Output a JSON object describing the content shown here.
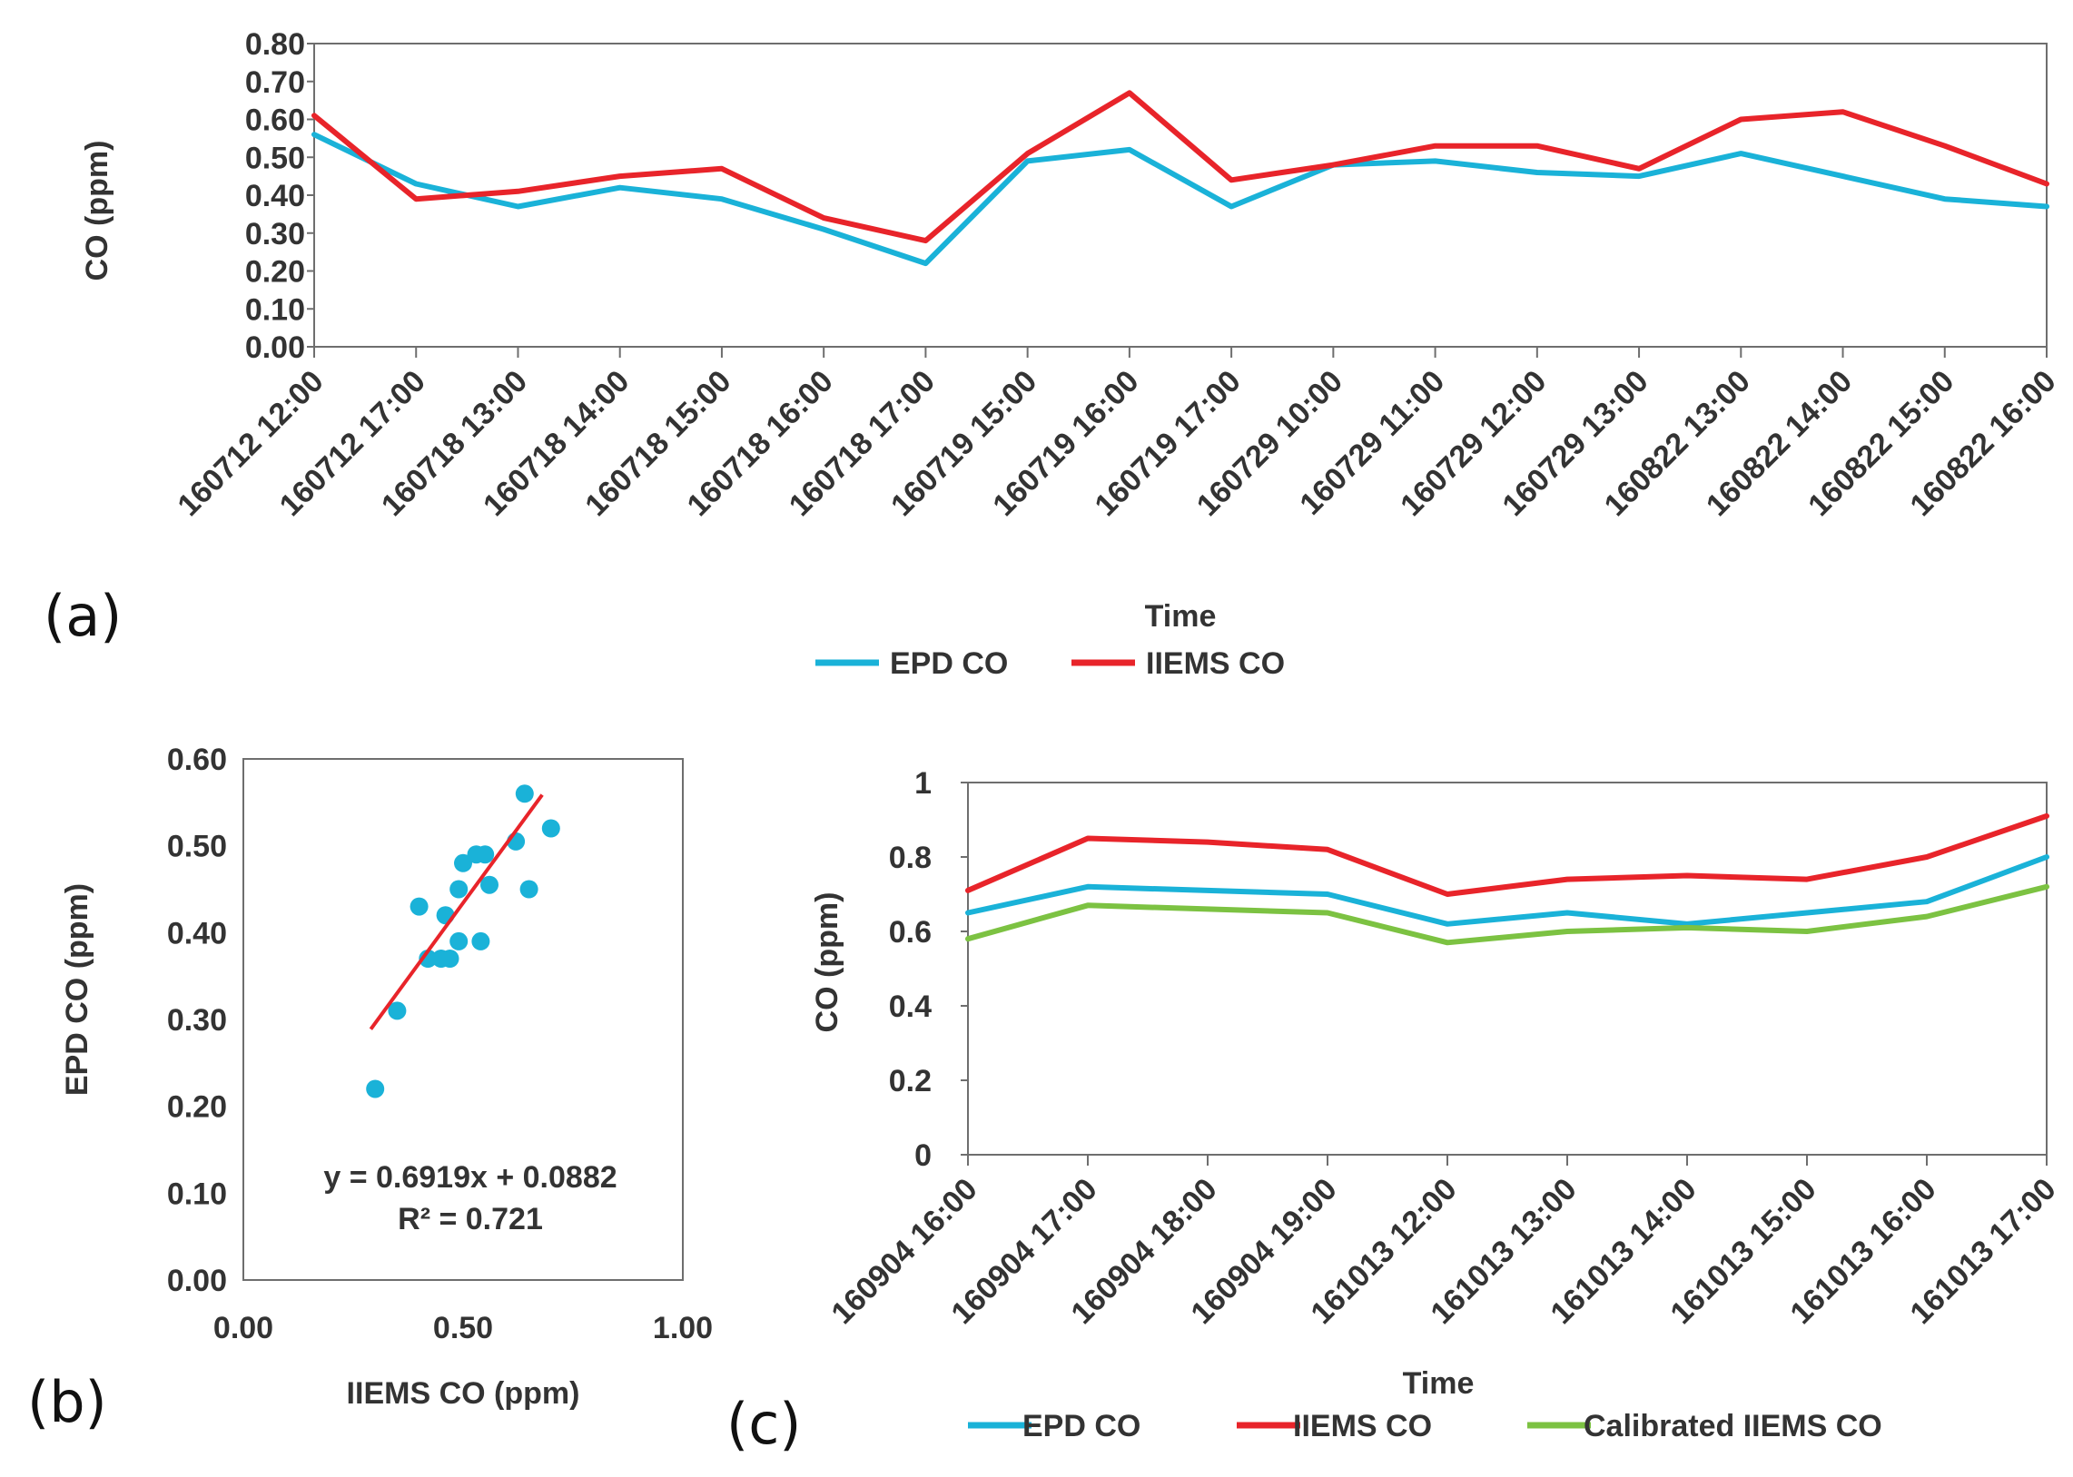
{
  "chart_data": [
    {
      "id": "a",
      "type": "line",
      "panel_label": "(a)",
      "xlabel": "Time",
      "ylabel": "CO (ppm)",
      "ylim": [
        0,
        0.8
      ],
      "yticks": [
        "0.00",
        "0.10",
        "0.20",
        "0.30",
        "0.40",
        "0.50",
        "0.60",
        "0.70",
        "0.80"
      ],
      "categories": [
        "160712 12:00",
        "160712 17:00",
        "160718 13:00",
        "160718 14:00",
        "160718 15:00",
        "160718 16:00",
        "160718 17:00",
        "160719 15:00",
        "160719 16:00",
        "160719 17:00",
        "160729 10:00",
        "160729 11:00",
        "160729 12:00",
        "160729 13:00",
        "160822 13:00",
        "160822 14:00",
        "160822 15:00",
        "160822 16:00"
      ],
      "series": [
        {
          "name": "EPD CO",
          "color": "#1ab2d8",
          "values": [
            0.56,
            0.43,
            0.37,
            0.42,
            0.39,
            0.31,
            0.22,
            0.49,
            0.52,
            0.37,
            0.48,
            0.49,
            0.46,
            0.45,
            0.51,
            0.45,
            0.39,
            0.37
          ]
        },
        {
          "name": "IIEMS CO",
          "color": "#e8242a",
          "values": [
            0.61,
            0.39,
            0.41,
            0.45,
            0.47,
            0.34,
            0.28,
            0.51,
            0.67,
            0.44,
            0.48,
            0.53,
            0.53,
            0.47,
            0.6,
            0.62,
            0.53,
            0.43
          ]
        }
      ],
      "grid": false,
      "legend_position": "bottom"
    },
    {
      "id": "b",
      "type": "scatter",
      "panel_label": "(b)",
      "xlabel": "IIEMS CO (ppm)",
      "ylabel": "EPD CO (ppm)",
      "xlim": [
        0,
        1
      ],
      "ylim": [
        0,
        0.6
      ],
      "xticks": [
        "0.00",
        "0.50",
        "1.00"
      ],
      "yticks": [
        "0.00",
        "0.10",
        "0.20",
        "0.30",
        "0.40",
        "0.50",
        "0.60"
      ],
      "points": [
        {
          "x": 0.3,
          "y": 0.22
        },
        {
          "x": 0.35,
          "y": 0.31
        },
        {
          "x": 0.4,
          "y": 0.43
        },
        {
          "x": 0.42,
          "y": 0.37
        },
        {
          "x": 0.45,
          "y": 0.37
        },
        {
          "x": 0.47,
          "y": 0.37
        },
        {
          "x": 0.46,
          "y": 0.42
        },
        {
          "x": 0.49,
          "y": 0.39
        },
        {
          "x": 0.49,
          "y": 0.45
        },
        {
          "x": 0.5,
          "y": 0.48
        },
        {
          "x": 0.53,
          "y": 0.49
        },
        {
          "x": 0.55,
          "y": 0.49
        },
        {
          "x": 0.54,
          "y": 0.39
        },
        {
          "x": 0.56,
          "y": 0.455
        },
        {
          "x": 0.62,
          "y": 0.505
        },
        {
          "x": 0.64,
          "y": 0.56
        },
        {
          "x": 0.65,
          "y": 0.45
        },
        {
          "x": 0.7,
          "y": 0.52
        }
      ],
      "point_color": "#1ab2d8",
      "trendline": {
        "slope": 0.6919,
        "intercept": 0.0882,
        "x_range": [
          0.29,
          0.68
        ],
        "color": "#e8242a"
      },
      "equation": "y = 0.6919x + 0.0882",
      "r_squared": "R² = 0.721",
      "grid": false
    },
    {
      "id": "c",
      "type": "line",
      "panel_label": "(c)",
      "xlabel": "Time",
      "ylabel": "CO (ppm)",
      "ylim": [
        0,
        1
      ],
      "yticks": [
        "0",
        "0.2",
        "0.4",
        "0.6",
        "0.8",
        "1"
      ],
      "categories": [
        "160904 16:00",
        "160904 17:00",
        "160904 18:00",
        "160904 19:00",
        "161013 12:00",
        "161013 13:00",
        "161013 14:00",
        "161013 15:00",
        "161013 16:00",
        "161013 17:00"
      ],
      "series": [
        {
          "name": "EPD CO",
          "color": "#1ab2d8",
          "values": [
            0.65,
            0.72,
            0.71,
            0.7,
            0.62,
            0.65,
            0.62,
            0.65,
            0.68,
            0.8
          ]
        },
        {
          "name": "IIEMS CO",
          "color": "#e8242a",
          "values": [
            0.71,
            0.85,
            0.84,
            0.82,
            0.7,
            0.74,
            0.75,
            0.74,
            0.8,
            0.91
          ]
        },
        {
          "name": "Calibrated IIEMS CO",
          "color": "#7cc242",
          "values": [
            0.58,
            0.67,
            0.66,
            0.65,
            0.57,
            0.6,
            0.61,
            0.6,
            0.64,
            0.72
          ]
        }
      ],
      "grid": false,
      "legend_position": "bottom"
    }
  ]
}
